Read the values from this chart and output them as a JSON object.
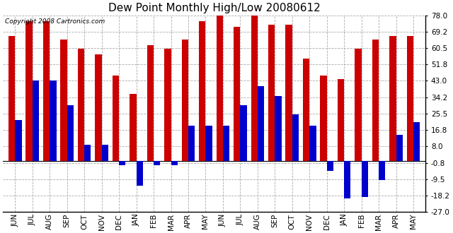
{
  "title": "Dew Point Monthly High/Low 20080612",
  "copyright": "Copyright 2008 Cartronics.com",
  "categories": [
    "JUN",
    "JUL",
    "AUG",
    "SEP",
    "OCT",
    "NOV",
    "DEC",
    "JAN",
    "FEB",
    "MAR",
    "APR",
    "MAY",
    "JUN",
    "JUL",
    "AUG",
    "SEP",
    "OCT",
    "NOV",
    "DEC",
    "JAN",
    "FEB",
    "MAR",
    "APR",
    "MAY"
  ],
  "highs": [
    67.0,
    75.0,
    75.0,
    65.0,
    60.0,
    57.0,
    46.0,
    36.0,
    62.0,
    60.0,
    65.0,
    75.0,
    78.0,
    72.0,
    78.0,
    73.0,
    73.0,
    55.0,
    46.0,
    44.0,
    60.0,
    65.0,
    67.0,
    67.0
  ],
  "lows": [
    22.0,
    43.0,
    43.0,
    30.0,
    9.0,
    9.0,
    -2.0,
    -13.0,
    -2.0,
    -2.0,
    19.0,
    19.0,
    19.0,
    30.0,
    40.0,
    35.0,
    25.0,
    19.0,
    -5.0,
    -20.0,
    -19.0,
    -10.0,
    14.0,
    21.0
  ],
  "high_color": "#cc0000",
  "low_color": "#0000cc",
  "ylim": [
    -27.0,
    78.0
  ],
  "yticks": [
    -27.0,
    -18.2,
    -9.5,
    -0.8,
    8.0,
    16.8,
    25.5,
    34.2,
    43.0,
    51.8,
    60.5,
    69.2,
    78.0
  ],
  "ytick_labels": [
    "-27.0",
    "-18.2",
    "-9.5",
    "-0.8",
    "8.0",
    "16.8",
    "25.5",
    "34.2",
    "43.0",
    "51.8",
    "60.5",
    "69.2",
    "78.0"
  ],
  "background_color": "#ffffff",
  "grid_color": "#aaaaaa",
  "bar_width": 0.38,
  "title_fontsize": 11,
  "tick_fontsize": 7.5,
  "copyright_fontsize": 6.5
}
